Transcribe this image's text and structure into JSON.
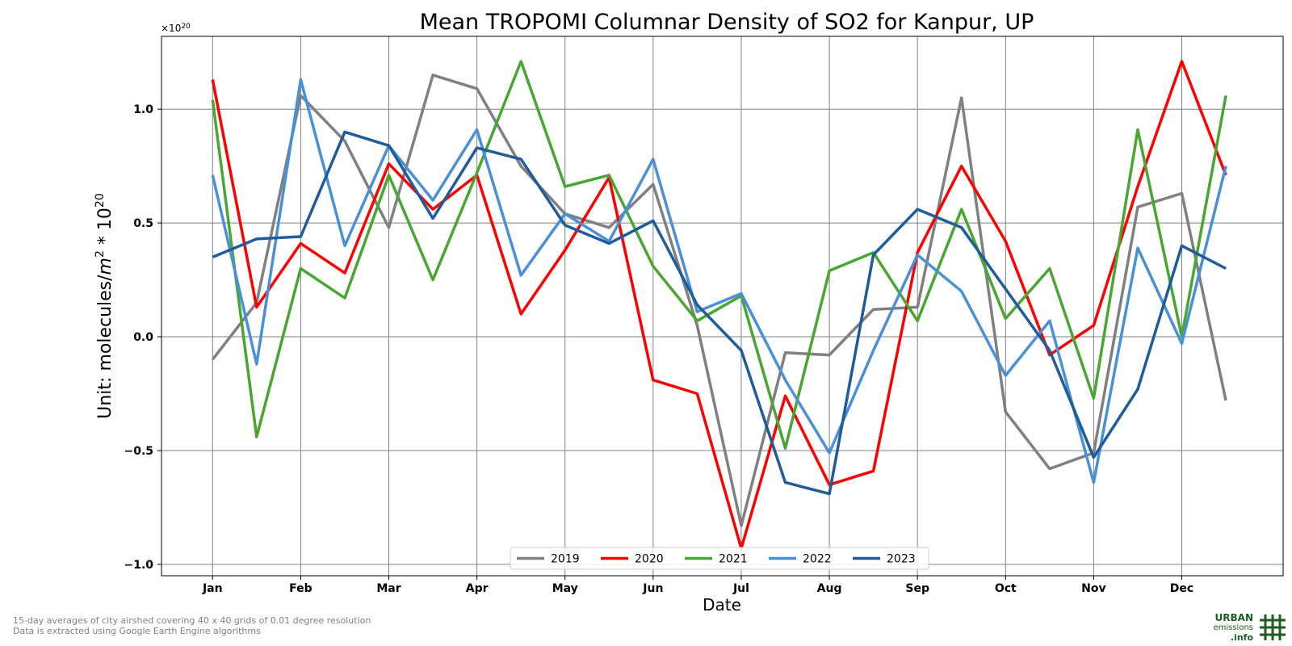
{
  "chart_data": {
    "type": "line",
    "title": "Mean TROPOMI Columnar Density of SO2 for Kanpur, UP",
    "xlabel": "Date",
    "ylabel": "Unit: molecules/m² * 10²⁰",
    "ylabel_base": "Unit: molecules/",
    "ylabel_unit": "m",
    "ylabel_unit_exp": "2",
    "ylabel_mult": " * 10",
    "ylabel_mult_exp": "20",
    "multiplier_base": "×10",
    "multiplier_exp": "20",
    "ylim": [
      -1.05,
      1.32
    ],
    "xlim": [
      0.42,
      13.15
    ],
    "yticks": [
      -1.0,
      -0.5,
      0.0,
      0.5,
      1.0
    ],
    "ytick_labels": [
      "−1.0",
      "−0.5",
      "0.0",
      "0.5",
      "1.0"
    ],
    "xticks": [
      1,
      2,
      3,
      4,
      5,
      6,
      7,
      8,
      9,
      10,
      11,
      12
    ],
    "xtick_labels": [
      "Jan",
      "Feb",
      "Mar",
      "Apr",
      "May",
      "Jun",
      "Jul",
      "Aug",
      "Sep",
      "Oct",
      "Nov",
      "Dec"
    ],
    "x": [
      1,
      1.5,
      2,
      2.5,
      3,
      3.5,
      4,
      4.5,
      5,
      5.5,
      6,
      6.5,
      7,
      7.5,
      8,
      8.5,
      9,
      9.5,
      10,
      10.5,
      11,
      11.5,
      12,
      12.5
    ],
    "grid": true,
    "legend_position": "bottom-center",
    "series": [
      {
        "name": "2019",
        "color": "#808080",
        "values": [
          -0.1,
          0.15,
          1.06,
          0.86,
          0.48,
          1.15,
          1.09,
          0.75,
          0.54,
          0.48,
          0.67,
          0.05,
          -0.83,
          -0.07,
          -0.08,
          0.12,
          0.13,
          1.05,
          -0.33,
          -0.58,
          -0.51,
          0.57,
          0.63,
          -0.28
        ]
      },
      {
        "name": "2020",
        "color": "#ff0000",
        "values": [
          1.13,
          0.13,
          0.41,
          0.28,
          0.76,
          0.56,
          0.71,
          0.1,
          0.38,
          0.7,
          -0.19,
          -0.25,
          -0.93,
          -0.26,
          -0.65,
          -0.59,
          0.37,
          0.75,
          0.42,
          -0.08,
          0.05,
          0.66,
          1.21,
          0.71
        ]
      },
      {
        "name": "2021",
        "color": "#4aa632",
        "values": [
          1.04,
          -0.44,
          0.3,
          0.17,
          0.71,
          0.25,
          0.72,
          1.21,
          0.66,
          0.71,
          0.31,
          0.07,
          0.18,
          -0.49,
          0.29,
          0.37,
          0.07,
          0.56,
          0.08,
          0.3,
          -0.27,
          0.91,
          0.0,
          1.06
        ]
      },
      {
        "name": "2022",
        "color": "#4a90d9",
        "values": [
          0.71,
          -0.12,
          1.13,
          0.4,
          0.84,
          0.6,
          0.91,
          0.27,
          0.54,
          0.42,
          0.78,
          0.11,
          0.19,
          -0.19,
          -0.51,
          -0.06,
          0.36,
          0.2,
          -0.17,
          0.07,
          -0.64,
          0.39,
          -0.03,
          0.75
        ]
      },
      {
        "name": "2023",
        "color": "#1f5c99",
        "values": [
          0.35,
          0.43,
          0.44,
          0.9,
          0.84,
          0.52,
          0.83,
          0.78,
          0.49,
          0.41,
          0.51,
          0.14,
          -0.06,
          -0.64,
          -0.69,
          0.36,
          0.56,
          0.48,
          0.21,
          -0.06,
          -0.53,
          -0.23,
          0.4,
          0.3
        ]
      }
    ]
  },
  "footnotes": [
    "15-day averages of city airshed covering 40 x 40 grids of 0.01 degree resolution",
    "Data is extracted using Google Earth Engine algorithms"
  ],
  "logo": {
    "line1": "URBAN",
    "line2": "emissions",
    "line3": ".info",
    "color": "#1b5e20"
  }
}
